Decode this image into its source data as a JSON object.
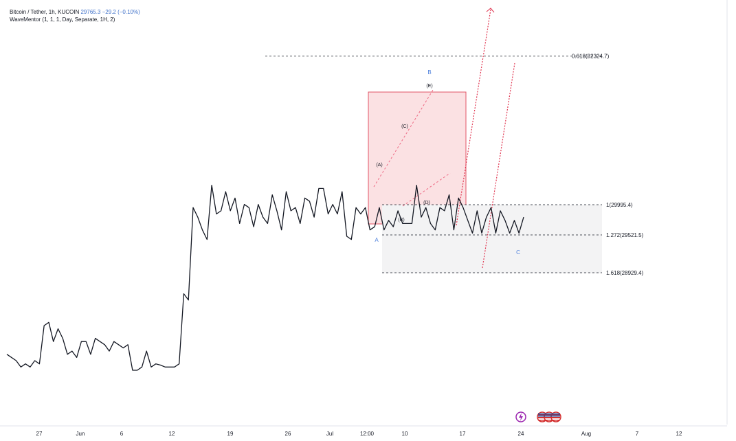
{
  "header": {
    "symbol": "Bitcoin / Tether, 1h, KUCOIN",
    "price": "29765.3",
    "change": "−29.2 (−0.10%)",
    "indicator": "WaveMentor (1, 1, 1, Day, Separate, 1H, 2)"
  },
  "chart_data": {
    "type": "line",
    "x_ticks": [
      "27",
      "Jun",
      "6",
      "12",
      "19",
      "26",
      "Jul",
      "12:00",
      "10",
      "17",
      "24",
      "Aug",
      "7",
      "12"
    ],
    "fib_levels": [
      {
        "label": "0.618(32324.7)",
        "value": 32324.7
      },
      {
        "label": "1(29995.4)",
        "value": 29995.4
      },
      {
        "label": "1.272(29521.5)",
        "value": 29521.5
      },
      {
        "label": "1.618(28929.4)",
        "value": 28929.4
      }
    ],
    "wave_labels_major": [
      "A",
      "B",
      "C"
    ],
    "wave_labels_minor": [
      "(A)",
      "(B)",
      "(C)",
      "(D)",
      "(E)"
    ],
    "series": [
      {
        "values": [
          27650,
          27600,
          27550,
          27450,
          27500,
          27450,
          27550,
          27500,
          28100,
          28150,
          27850,
          28050,
          27900,
          27650,
          27700,
          27600,
          27850,
          27850,
          27650,
          27900,
          27850,
          27800,
          27700,
          27850,
          27800,
          27750,
          27800,
          27400,
          27400,
          27450,
          27700,
          27450,
          27500,
          27480,
          27450,
          27450,
          27450,
          27500,
          28600,
          28500,
          29950,
          29800,
          29600,
          29450,
          30300,
          29850,
          29900,
          30200,
          29900,
          30100,
          29700,
          30000,
          29950,
          29650,
          30000,
          29800,
          29700,
          30150,
          29900,
          29600,
          30200,
          29900,
          29950,
          29700,
          30100,
          30050,
          29800,
          30250,
          30250,
          29850,
          30000,
          29850,
          30200,
          29500,
          29450,
          29950,
          29850,
          29950,
          29600,
          29650,
          29950,
          29600,
          29750,
          29650,
          29900,
          29700,
          29700,
          29700,
          30300,
          29800,
          29950,
          29700,
          29600,
          29950,
          29900,
          30150,
          29600,
          30100,
          29950,
          29750,
          29550,
          29900,
          29550,
          29800,
          29950,
          29550,
          29900,
          29750,
          29550,
          29750,
          29550,
          29800
        ]
      }
    ]
  },
  "icons": [
    "lightning-icon",
    "us-flag-icon"
  ]
}
